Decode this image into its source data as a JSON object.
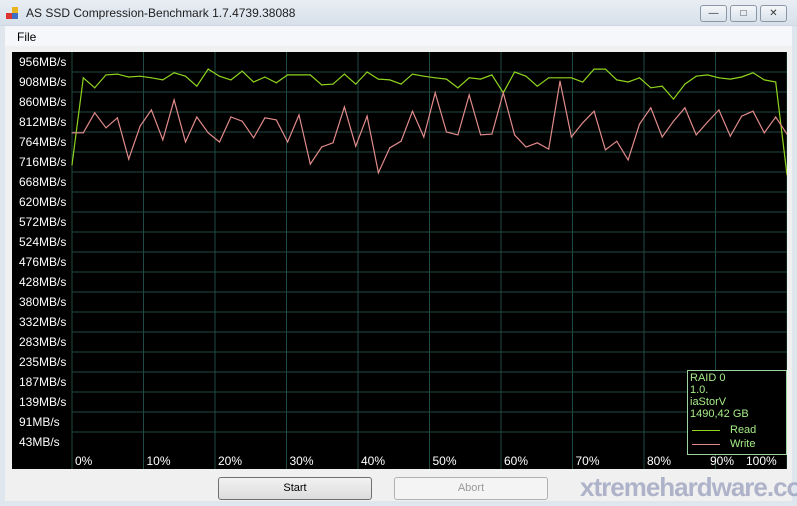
{
  "window": {
    "title": "AS SSD Compression-Benchmark 1.7.4739.38088",
    "controls": [
      "minimize",
      "maximize",
      "close"
    ]
  },
  "menu": {
    "items": [
      "File"
    ]
  },
  "legend": {
    "lines": [
      "RAID 0",
      "1.0.",
      "iaStorV",
      "1490,42 GB"
    ],
    "read": "Read",
    "write": "Write"
  },
  "buttons": {
    "start": "Start",
    "abort": "Abort"
  },
  "watermark": "xtremehardware.com",
  "chart_data": {
    "type": "line",
    "y_tick_labels": [
      "956MB/s",
      "908MB/s",
      "860MB/s",
      "812MB/s",
      "764MB/s",
      "716MB/s",
      "668MB/s",
      "620MB/s",
      "572MB/s",
      "524MB/s",
      "476MB/s",
      "428MB/s",
      "380MB/s",
      "332MB/s",
      "283MB/s",
      "235MB/s",
      "187MB/s",
      "139MB/s",
      "91MB/s",
      "43MB/s"
    ],
    "x_tick_labels": [
      "0%",
      "10%",
      "20%",
      "30%",
      "40%",
      "50%",
      "60%",
      "70%",
      "80%",
      "90%",
      "100%"
    ],
    "xlim": [
      0,
      100
    ],
    "grid": true,
    "legend_position": "bottom-right",
    "colors": {
      "read": "#8fd41e",
      "write": "#e08a8a",
      "grid": "#1f4a44",
      "background": "#000000"
    },
    "series": [
      {
        "name": "Read",
        "values": [
          709,
          918,
          894,
          925,
          927,
          920,
          922,
          918,
          913,
          930,
          922,
          898,
          939,
          922,
          913,
          934,
          908,
          920,
          906,
          925,
          925,
          925,
          901,
          903,
          927,
          903,
          932,
          915,
          913,
          903,
          927,
          922,
          918,
          915,
          894,
          918,
          915,
          925,
          882,
          932,
          922,
          898,
          918,
          918,
          918,
          908,
          939,
          939,
          913,
          908,
          918,
          894,
          898,
          867,
          903,
          922,
          925,
          918,
          915,
          920,
          930,
          913,
          908,
          685
        ]
      },
      {
        "name": "Write",
        "values": [
          786,
          786,
          834,
          798,
          822,
          723,
          802,
          841,
          769,
          865,
          764,
          824,
          786,
          764,
          824,
          814,
          774,
          822,
          817,
          764,
          829,
          711,
          752,
          762,
          848,
          754,
          826,
          690,
          750,
          766,
          838,
          776,
          882,
          788,
          781,
          877,
          781,
          783,
          882,
          781,
          752,
          762,
          747,
          910,
          776,
          810,
          838,
          745,
          766,
          721,
          807,
          846,
          776,
          814,
          846,
          781,
          812,
          841,
          778,
          826,
          838,
          786,
          824,
          783
        ]
      }
    ]
  }
}
